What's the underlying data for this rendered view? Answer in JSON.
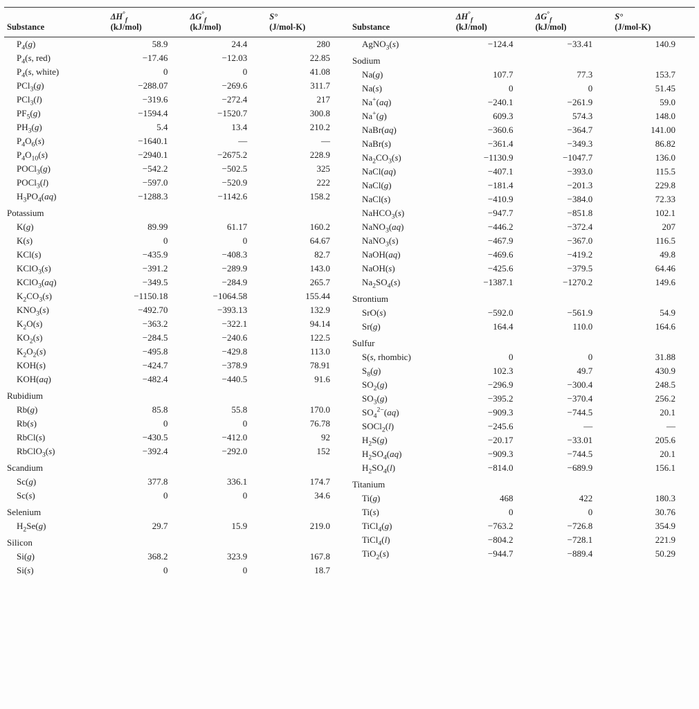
{
  "headers": {
    "substance": "Substance",
    "dhf_sym": "ΔH",
    "dgf_sym": "ΔG",
    "s_sym": "S°",
    "sup_f": "f",
    "sup_o": "°",
    "unit_kj": "(kJ/mol)",
    "unit_jk": "(J/mol-K)"
  },
  "left": [
    {
      "t": "row",
      "f": "P<sub>4</sub>(<i>g</i>)",
      "h": "58.9",
      "g": "24.4",
      "s": "280"
    },
    {
      "t": "row",
      "f": "P<sub>4</sub>(<i>s</i>, red)",
      "h": "−17.46",
      "g": "−12.03",
      "s": "22.85"
    },
    {
      "t": "row",
      "f": "P<sub>4</sub>(<i>s</i>, white)",
      "h": "0",
      "g": "0",
      "s": "41.08"
    },
    {
      "t": "row",
      "f": "PCl<sub>3</sub>(<i>g</i>)",
      "h": "−288.07",
      "g": "−269.6",
      "s": "311.7"
    },
    {
      "t": "row",
      "f": "PCl<sub>3</sub>(<i>l</i>)",
      "h": "−319.6",
      "g": "−272.4",
      "s": "217"
    },
    {
      "t": "row",
      "f": "PF<sub>5</sub>(<i>g</i>)",
      "h": "−1594.4",
      "g": "−1520.7",
      "s": "300.8"
    },
    {
      "t": "row",
      "f": "PH<sub>3</sub>(<i>g</i>)",
      "h": "5.4",
      "g": "13.4",
      "s": "210.2"
    },
    {
      "t": "row",
      "f": "P<sub>4</sub>O<sub>6</sub>(<i>s</i>)",
      "h": "−1640.1",
      "g": "—",
      "s": "—"
    },
    {
      "t": "row",
      "f": "P<sub>4</sub>O<sub>10</sub>(<i>s</i>)",
      "h": "−2940.1",
      "g": "−2675.2",
      "s": "228.9"
    },
    {
      "t": "row",
      "f": "POCl<sub>3</sub>(<i>g</i>)",
      "h": "−542.2",
      "g": "−502.5",
      "s": "325"
    },
    {
      "t": "row",
      "f": "POCl<sub>3</sub>(<i>l</i>)",
      "h": "−597.0",
      "g": "−520.9",
      "s": "222"
    },
    {
      "t": "row",
      "f": "H<sub>3</sub>PO<sub>4</sub>(<i>aq</i>)",
      "h": "−1288.3",
      "g": "−1142.6",
      "s": "158.2"
    },
    {
      "t": "hdr",
      "f": "Potassium"
    },
    {
      "t": "row",
      "f": "K(<i>g</i>)",
      "h": "89.99",
      "g": "61.17",
      "s": "160.2"
    },
    {
      "t": "row",
      "f": "K(<i>s</i>)",
      "h": "0",
      "g": "0",
      "s": "64.67"
    },
    {
      "t": "row",
      "f": "KCl(<i>s</i>)",
      "h": "−435.9",
      "g": "−408.3",
      "s": "82.7"
    },
    {
      "t": "row",
      "f": "KClO<sub>3</sub>(<i>s</i>)",
      "h": "−391.2",
      "g": "−289.9",
      "s": "143.0"
    },
    {
      "t": "row",
      "f": "KClO<sub>3</sub>(<i>aq</i>)",
      "h": "−349.5",
      "g": "−284.9",
      "s": "265.7"
    },
    {
      "t": "row",
      "f": "K<sub>2</sub>CO<sub>3</sub>(<i>s</i>)",
      "h": "−1150.18",
      "g": "−1064.58",
      "s": "155.44"
    },
    {
      "t": "row",
      "f": "KNO<sub>3</sub>(<i>s</i>)",
      "h": "−492.70",
      "g": "−393.13",
      "s": "132.9"
    },
    {
      "t": "row",
      "f": "K<sub>2</sub>O(<i>s</i>)",
      "h": "−363.2",
      "g": "−322.1",
      "s": "94.14"
    },
    {
      "t": "row",
      "f": "KO<sub>2</sub>(<i>s</i>)",
      "h": "−284.5",
      "g": "−240.6",
      "s": "122.5"
    },
    {
      "t": "row",
      "f": "K<sub>2</sub>O<sub>2</sub>(<i>s</i>)",
      "h": "−495.8",
      "g": "−429.8",
      "s": "113.0"
    },
    {
      "t": "row",
      "f": "KOH(<i>s</i>)",
      "h": "−424.7",
      "g": "−378.9",
      "s": "78.91"
    },
    {
      "t": "row",
      "f": "KOH(<i>aq</i>)",
      "h": "−482.4",
      "g": "−440.5",
      "s": "91.6"
    },
    {
      "t": "hdr",
      "f": "Rubidium"
    },
    {
      "t": "row",
      "f": "Rb(<i>g</i>)",
      "h": "85.8",
      "g": "55.8",
      "s": "170.0"
    },
    {
      "t": "row",
      "f": "Rb(<i>s</i>)",
      "h": "0",
      "g": "0",
      "s": "76.78"
    },
    {
      "t": "row",
      "f": "RbCl(<i>s</i>)",
      "h": "−430.5",
      "g": "−412.0",
      "s": "92"
    },
    {
      "t": "row",
      "f": "RbClO<sub>3</sub>(<i>s</i>)",
      "h": "−392.4",
      "g": "−292.0",
      "s": "152"
    },
    {
      "t": "hdr",
      "f": "Scandium"
    },
    {
      "t": "row",
      "f": "Sc(<i>g</i>)",
      "h": "377.8",
      "g": "336.1",
      "s": "174.7"
    },
    {
      "t": "row",
      "f": "Sc(<i>s</i>)",
      "h": "0",
      "g": "0",
      "s": "34.6"
    },
    {
      "t": "hdr",
      "f": "Selenium"
    },
    {
      "t": "row",
      "f": "H<sub>2</sub>Se(<i>g</i>)",
      "h": "29.7",
      "g": "15.9",
      "s": "219.0"
    },
    {
      "t": "hdr",
      "f": "Silicon"
    },
    {
      "t": "row",
      "f": "Si(<i>g</i>)",
      "h": "368.2",
      "g": "323.9",
      "s": "167.8"
    },
    {
      "t": "row",
      "f": "Si(<i>s</i>)",
      "h": "0",
      "g": "0",
      "s": "18.7"
    }
  ],
  "right": [
    {
      "t": "row",
      "f": "AgNO<sub>3</sub>(<i>s</i>)",
      "h": "−124.4",
      "g": "−33.41",
      "s": "140.9"
    },
    {
      "t": "hdr",
      "f": "Sodium"
    },
    {
      "t": "row",
      "f": "Na(<i>g</i>)",
      "h": "107.7",
      "g": "77.3",
      "s": "153.7"
    },
    {
      "t": "row",
      "f": "Na(<i>s</i>)",
      "h": "0",
      "g": "0",
      "s": "51.45"
    },
    {
      "t": "row",
      "f": "Na<sup>+</sup>(<i>aq</i>)",
      "h": "−240.1",
      "g": "−261.9",
      "s": "59.0"
    },
    {
      "t": "row",
      "f": "Na<sup>+</sup>(<i>g</i>)",
      "h": "609.3",
      "g": "574.3",
      "s": "148.0"
    },
    {
      "t": "row",
      "f": "NaBr(<i>aq</i>)",
      "h": "−360.6",
      "g": "−364.7",
      "s": "141.00"
    },
    {
      "t": "row",
      "f": "NaBr(<i>s</i>)",
      "h": "−361.4",
      "g": "−349.3",
      "s": "86.82"
    },
    {
      "t": "row",
      "f": "Na<sub>2</sub>CO<sub>3</sub>(<i>s</i>)",
      "h": "−1130.9",
      "g": "−1047.7",
      "s": "136.0"
    },
    {
      "t": "row",
      "f": "NaCl(<i>aq</i>)",
      "h": "−407.1",
      "g": "−393.0",
      "s": "115.5"
    },
    {
      "t": "row",
      "f": "NaCl(<i>g</i>)",
      "h": "−181.4",
      "g": "−201.3",
      "s": "229.8"
    },
    {
      "t": "row",
      "f": "NaCl(<i>s</i>)",
      "h": "−410.9",
      "g": "−384.0",
      "s": "72.33"
    },
    {
      "t": "row",
      "f": "NaHCO<sub>3</sub>(<i>s</i>)",
      "h": "−947.7",
      "g": "−851.8",
      "s": "102.1"
    },
    {
      "t": "row",
      "f": "NaNO<sub>3</sub>(<i>aq</i>)",
      "h": "−446.2",
      "g": "−372.4",
      "s": "207"
    },
    {
      "t": "row",
      "f": "NaNO<sub>3</sub>(<i>s</i>)",
      "h": "−467.9",
      "g": "−367.0",
      "s": "116.5"
    },
    {
      "t": "row",
      "f": "NaOH(<i>aq</i>)",
      "h": "−469.6",
      "g": "−419.2",
      "s": "49.8"
    },
    {
      "t": "row",
      "f": "NaOH(<i>s</i>)",
      "h": "−425.6",
      "g": "−379.5",
      "s": "64.46"
    },
    {
      "t": "row",
      "f": "Na<sub>2</sub>SO<sub>4</sub>(<i>s</i>)",
      "h": "−1387.1",
      "g": "−1270.2",
      "s": "149.6"
    },
    {
      "t": "hdr",
      "f": "Strontium"
    },
    {
      "t": "row",
      "f": "SrO(<i>s</i>)",
      "h": "−592.0",
      "g": "−561.9",
      "s": "54.9"
    },
    {
      "t": "row",
      "f": "Sr(<i>g</i>)",
      "h": "164.4",
      "g": "110.0",
      "s": "164.6"
    },
    {
      "t": "hdr",
      "f": "Sulfur"
    },
    {
      "t": "row",
      "f": "S(<i>s</i>, rhombic)",
      "h": "0",
      "g": "0",
      "s": "31.88"
    },
    {
      "t": "row",
      "f": "S<sub>8</sub>(<i>g</i>)",
      "h": "102.3",
      "g": "49.7",
      "s": "430.9"
    },
    {
      "t": "row",
      "f": "SO<sub>2</sub>(<i>g</i>)",
      "h": "−296.9",
      "g": "−300.4",
      "s": "248.5"
    },
    {
      "t": "row",
      "f": "SO<sub>3</sub>(<i>g</i>)",
      "h": "−395.2",
      "g": "−370.4",
      "s": "256.2"
    },
    {
      "t": "row",
      "f": "SO<sub>4</sub><sup>2−</sup>(<i>aq</i>)",
      "h": "−909.3",
      "g": "−744.5",
      "s": "20.1"
    },
    {
      "t": "row",
      "f": "SOCl<sub>2</sub>(<i>l</i>)",
      "h": "−245.6",
      "g": "—",
      "s": "—"
    },
    {
      "t": "row",
      "f": "H<sub>2</sub>S(<i>g</i>)",
      "h": "−20.17",
      "g": "−33.01",
      "s": "205.6"
    },
    {
      "t": "row",
      "f": "H<sub>2</sub>SO<sub>4</sub>(<i>aq</i>)",
      "h": "−909.3",
      "g": "−744.5",
      "s": "20.1"
    },
    {
      "t": "row",
      "f": "H<sub>2</sub>SO<sub>4</sub>(<i>l</i>)",
      "h": "−814.0",
      "g": "−689.9",
      "s": "156.1"
    },
    {
      "t": "hdr",
      "f": "Titanium"
    },
    {
      "t": "row",
      "f": "Ti(<i>g</i>)",
      "h": "468",
      "g": "422",
      "s": "180.3"
    },
    {
      "t": "row",
      "f": "Ti(<i>s</i>)",
      "h": "0",
      "g": "0",
      "s": "30.76"
    },
    {
      "t": "row",
      "f": "TiCl<sub>4</sub>(<i>g</i>)",
      "h": "−763.2",
      "g": "−726.8",
      "s": "354.9"
    },
    {
      "t": "row",
      "f": "TiCl<sub>4</sub>(<i>l</i>)",
      "h": "−804.2",
      "g": "−728.1",
      "s": "221.9"
    },
    {
      "t": "row",
      "f": "TiO<sub>2</sub>(<i>s</i>)",
      "h": "−944.7",
      "g": "−889.4",
      "s": "50.29"
    }
  ]
}
